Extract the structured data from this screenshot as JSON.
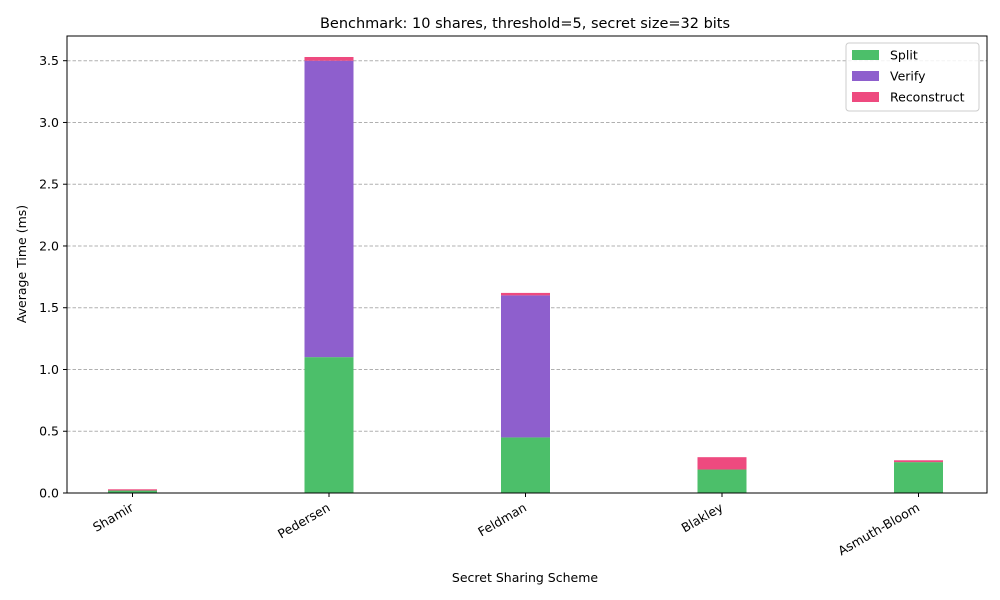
{
  "chart_data": {
    "type": "bar",
    "stacked": true,
    "title": "Benchmark: 10 shares, threshold=5, secret size=32 bits",
    "xlabel": "Secret Sharing Scheme",
    "ylabel": "Average Time (ms)",
    "categories": [
      "Shamir",
      "Pedersen",
      "Feldman",
      "Blakley",
      "Asmuth-Bloom"
    ],
    "series": [
      {
        "name": "Split",
        "color": "#4cbf6a",
        "values": [
          0.02,
          1.1,
          0.45,
          0.19,
          0.25
        ]
      },
      {
        "name": "Verify",
        "color": "#8e5fcd",
        "values": [
          0.0,
          2.4,
          1.15,
          0.0,
          0.0
        ]
      },
      {
        "name": "Reconstruct",
        "color": "#ee4a7f",
        "values": [
          0.01,
          0.03,
          0.02,
          0.1,
          0.015
        ]
      }
    ],
    "ylim": [
      0,
      3.7
    ],
    "yticks": [
      "0.0",
      "0.5",
      "1.0",
      "1.5",
      "2.0",
      "2.5",
      "3.0",
      "3.5"
    ],
    "grid": "y-dashed",
    "legend_position": "top-right"
  }
}
